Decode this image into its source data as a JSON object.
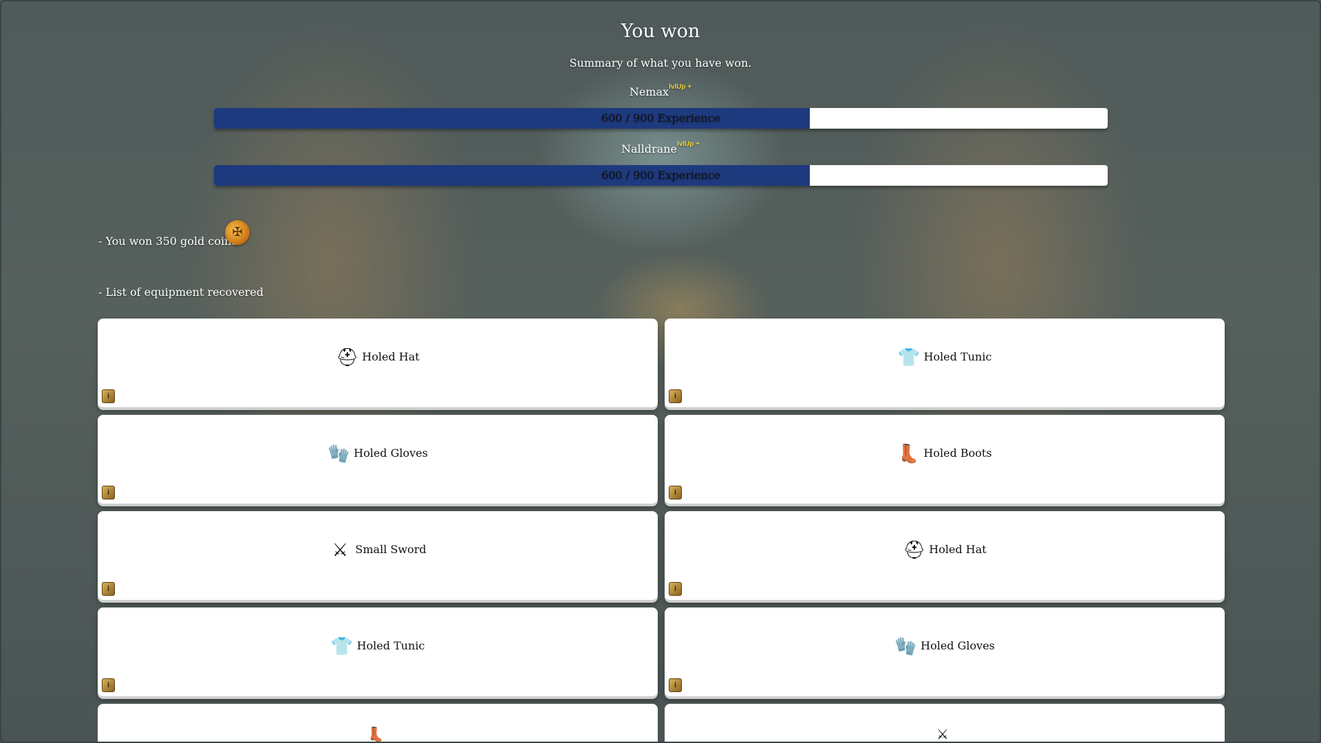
{
  "header": {
    "title": "You won",
    "subtitle": "Summary of what you have won."
  },
  "party": [
    {
      "name": "Nemax",
      "badge": "lvlUp +",
      "xp_text": "600 / 900 Experience",
      "xp": 600,
      "xp_max": 900,
      "fill_fraction": 0.667
    },
    {
      "name": "Nalldrane",
      "badge": "lvlUp +",
      "xp_text": "600 / 900 Experience",
      "xp": 600,
      "xp_max": 900,
      "fill_fraction": 0.667
    }
  ],
  "rewards": {
    "gold_text": "- You won 350 gold coins",
    "gold_icon": "gold-coin-icon",
    "equipment_heading": "- List of equipment recovered"
  },
  "equipment": [
    {
      "name": "Holed Hat",
      "icon": "helmet-icon"
    },
    {
      "name": "Holed Tunic",
      "icon": "tunic-icon"
    },
    {
      "name": "Holed Gloves",
      "icon": "gloves-icon"
    },
    {
      "name": "Holed Boots",
      "icon": "boots-icon"
    },
    {
      "name": "Small Sword",
      "icon": "sword-icon"
    },
    {
      "name": "Holed Hat",
      "icon": "helmet-icon"
    },
    {
      "name": "Holed Tunic",
      "icon": "tunic-icon"
    },
    {
      "name": "Holed Gloves",
      "icon": "gloves-icon"
    },
    {
      "icon": "boots-icon"
    },
    {
      "icon": "sword-icon"
    }
  ],
  "colors": {
    "xp_fill": "#1e3a7e",
    "badge": "#f2d43a"
  }
}
